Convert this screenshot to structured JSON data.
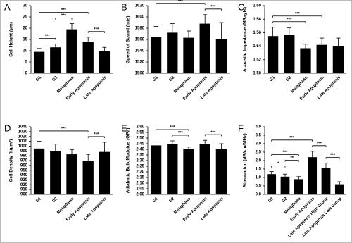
{
  "chart_data": [
    {
      "type": "bar",
      "title": "A",
      "ylabel": "Cell Height (μm)",
      "categories": [
        "G1",
        "G2",
        "Metaphase",
        "Early Apoptosis",
        "Late Apoptosis"
      ],
      "values": [
        9.5,
        11.5,
        19.5,
        14,
        10
      ],
      "errors": [
        1.5,
        1.5,
        2.5,
        2,
        1.5
      ],
      "color": "#000000",
      "ylim": [
        0,
        30
      ],
      "yticks": [
        0,
        5,
        10,
        15,
        20,
        25,
        30
      ],
      "significance": [
        {
          "label": "***",
          "from": 0,
          "to": 1
        },
        {
          "label": "***",
          "from": 3,
          "to": 4
        },
        {
          "label": "***",
          "from": 1,
          "to": 2
        },
        {
          "label": "***",
          "from": 0,
          "to": 3
        }
      ]
    },
    {
      "type": "bar",
      "title": "B",
      "ylabel": "Speed of Sound (m/s)",
      "categories": [
        "G1",
        "G2",
        "Metaphase",
        "Early Apoptosis",
        "Late Apoptosis"
      ],
      "values": [
        1565,
        1572,
        1563,
        1588,
        1560
      ],
      "errors": [
        18,
        16,
        12,
        16,
        30
      ],
      "color": "#000000",
      "ylim": [
        1500,
        1620
      ],
      "yticks": [
        1500,
        1520,
        1540,
        1560,
        1580,
        1600,
        1620
      ],
      "significance": [
        {
          "label": "***",
          "from": 3,
          "to": 4
        },
        {
          "label": "***",
          "from": 0,
          "to": 3
        }
      ]
    },
    {
      "type": "bar",
      "title": "C",
      "ylabel": "Acoustic Impedance (MRayls)",
      "categories": [
        "G1",
        "G2",
        "Metaphase",
        "Early Apoptosis",
        "Late Apoptosis"
      ],
      "values": [
        1.555,
        1.557,
        1.537,
        1.542,
        1.54
      ],
      "errors": [
        0.013,
        0.01,
        0.006,
        0.01,
        0.012
      ],
      "color": "#000000",
      "ylim": [
        1.5,
        1.6
      ],
      "yticks": [
        {
          "value": 1.5,
          "label": "1.50"
        },
        1.52,
        1.54,
        1.56,
        1.58,
        {
          "value": 1.6,
          "label": "1.60"
        }
      ],
      "significance": [
        {
          "label": "***",
          "from": 0,
          "to": 2
        },
        {
          "label": "***",
          "from": 0,
          "to": 3
        }
      ]
    },
    {
      "type": "bar",
      "title": "D",
      "ylabel": "Cell Density (kg/m³)",
      "categories": [
        "G1",
        "G2",
        "Metaphase",
        "Early Apoptosis",
        "Late Apoptosis"
      ],
      "values": [
        995,
        990,
        983,
        970,
        988
      ],
      "errors": [
        15,
        14,
        10,
        13,
        20
      ],
      "color": "#000000",
      "ylim": [
        900,
        1040
      ],
      "yticks": [
        900,
        910,
        920,
        930,
        940,
        950,
        960,
        970,
        980,
        990,
        1000,
        1010,
        1020,
        1030,
        1040
      ],
      "significance": [
        {
          "label": "***",
          "from": 3,
          "to": 4
        },
        {
          "label": "***",
          "from": 0,
          "to": 3
        }
      ]
    },
    {
      "type": "bar",
      "title": "E",
      "ylabel": "Adiabatic Bulk Modulus (GPa)",
      "categories": [
        "G1",
        "G2",
        "Metaphase",
        "Early Apoptosis",
        "Late Apoptosis"
      ],
      "values": [
        2.435,
        2.45,
        2.405,
        2.45,
        2.4
      ],
      "errors": [
        0.03,
        0.025,
        0.015,
        0.03,
        0.05
      ],
      "color": "#000000",
      "ylim": [
        2.0,
        2.6
      ],
      "yticks": [
        {
          "value": 2.0,
          "label": "2.00"
        },
        2.05,
        {
          "value": 2.1,
          "label": "2.10"
        },
        2.15,
        {
          "value": 2.2,
          "label": "2.20"
        },
        2.25,
        {
          "value": 2.3,
          "label": "2.30"
        },
        2.35,
        {
          "value": 2.4,
          "label": "2.40"
        },
        2.45,
        {
          "value": 2.5,
          "label": "2.50"
        },
        2.55,
        {
          "value": 2.6,
          "label": "2.60"
        }
      ],
      "significance": [
        {
          "label": "***",
          "from": 1,
          "to": 2
        },
        {
          "label": "***",
          "from": 3,
          "to": 4
        },
        {
          "label": "***",
          "from": 0,
          "to": 2
        }
      ]
    },
    {
      "type": "bar",
      "title": "F",
      "ylabel": "Attenuation (dB/cm/MHz)",
      "categories": [
        "G1",
        "G2",
        "Metaphase",
        "Early Apoptosis",
        "Late Apoptosis High Group",
        "Late Apoptosis Low Group"
      ],
      "values": [
        1.2,
        1.05,
        0.9,
        2.2,
        1.55,
        0.6
      ],
      "errors": [
        0.15,
        0.15,
        0.15,
        0.35,
        0.3,
        0.15
      ],
      "color": "#000000",
      "ylim": [
        0,
        4
      ],
      "yticks": [
        {
          "value": 0,
          "label": "0.0"
        },
        0.5,
        {
          "value": 1,
          "label": "1.0"
        },
        1.5,
        {
          "value": 2,
          "label": "2.0"
        },
        2.5,
        {
          "value": 3,
          "label": "3.0"
        },
        3.5,
        {
          "value": 4,
          "label": "4.0"
        }
      ],
      "significance": [
        {
          "label": "*",
          "from": 0,
          "to": 1
        },
        {
          "label": "**",
          "from": 1,
          "to": 2
        },
        {
          "label": "***",
          "from": 4,
          "to": 5
        },
        {
          "label": "***",
          "from": 3,
          "to": 4
        },
        {
          "label": "***",
          "from": 0,
          "to": 2
        },
        {
          "label": "***",
          "from": 0,
          "to": 3
        }
      ]
    }
  ]
}
